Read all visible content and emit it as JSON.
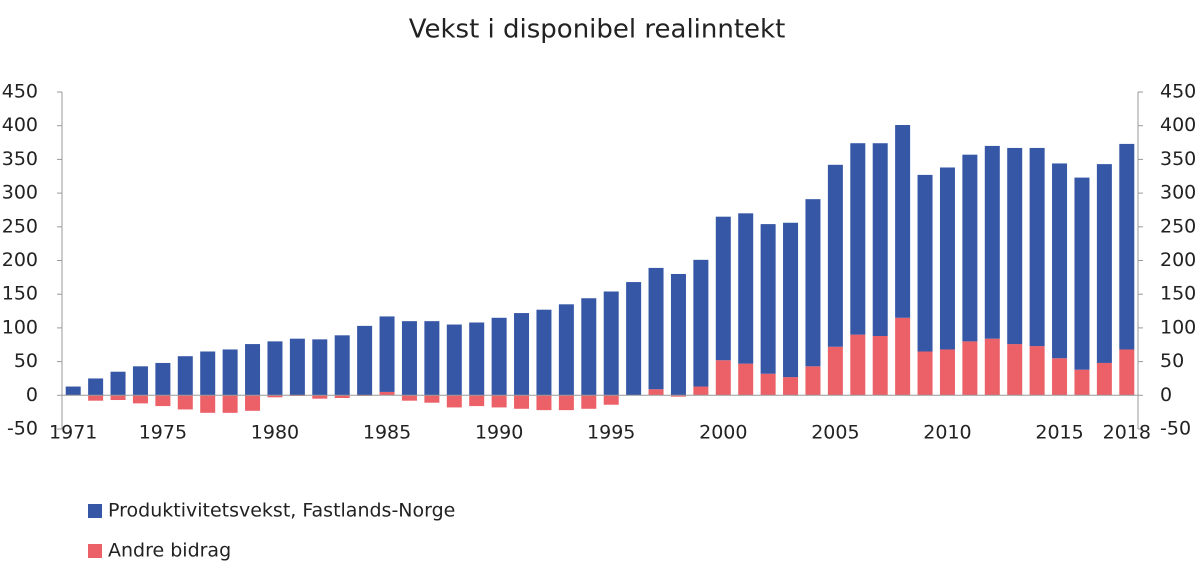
{
  "chart_data": {
    "type": "stacked_bar",
    "title": "Vekst i disponibel realinntekt",
    "categories": [
      "1971",
      null,
      null,
      null,
      "1975",
      null,
      null,
      null,
      null,
      "1980",
      null,
      null,
      null,
      null,
      "1985",
      null,
      null,
      null,
      null,
      "1990",
      null,
      null,
      null,
      null,
      "1995",
      null,
      null,
      null,
      null,
      "2000",
      null,
      null,
      null,
      null,
      "2005",
      null,
      null,
      null,
      null,
      "2010",
      null,
      null,
      null,
      null,
      "2015",
      null,
      null,
      "2018"
    ],
    "series": [
      {
        "name": "Produktivitetsvekst, Fastlands-Norge",
        "color": "#3656a6",
        "values": [
          13,
          25,
          35,
          43,
          48,
          58,
          65,
          68,
          76,
          80,
          84,
          83,
          89,
          103,
          112,
          110,
          110,
          105,
          108,
          115,
          122,
          127,
          135,
          144,
          154,
          168,
          180,
          180,
          188,
          213,
          223,
          222,
          229,
          248,
          270,
          284,
          286,
          286,
          262,
          270,
          277,
          286,
          291,
          294,
          289,
          285,
          295,
          305
        ]
      },
      {
        "name": "Andre bidrag",
        "color": "#ec6068",
        "values": [
          0,
          -8,
          -7,
          -12,
          -16,
          -21,
          -26,
          -26,
          -23,
          -3,
          -1,
          -5,
          -4,
          -1,
          5,
          -8,
          -11,
          -18,
          -16,
          -18,
          -20,
          -22,
          -22,
          -20,
          -14,
          0,
          9,
          -2,
          13,
          52,
          47,
          32,
          27,
          43,
          72,
          90,
          88,
          115,
          65,
          68,
          80,
          84,
          76,
          73,
          55,
          38,
          48,
          68
        ]
      }
    ],
    "ylim": [
      -50,
      450
    ],
    "yticks": [
      -50,
      0,
      50,
      100,
      150,
      200,
      250,
      300,
      350,
      400,
      450
    ],
    "y2lim": [
      -50,
      450
    ],
    "y2ticks": [
      -50,
      0,
      50,
      100,
      150,
      200,
      250,
      300,
      350,
      400,
      450
    ],
    "grid": false,
    "legend": "bottom-left"
  }
}
